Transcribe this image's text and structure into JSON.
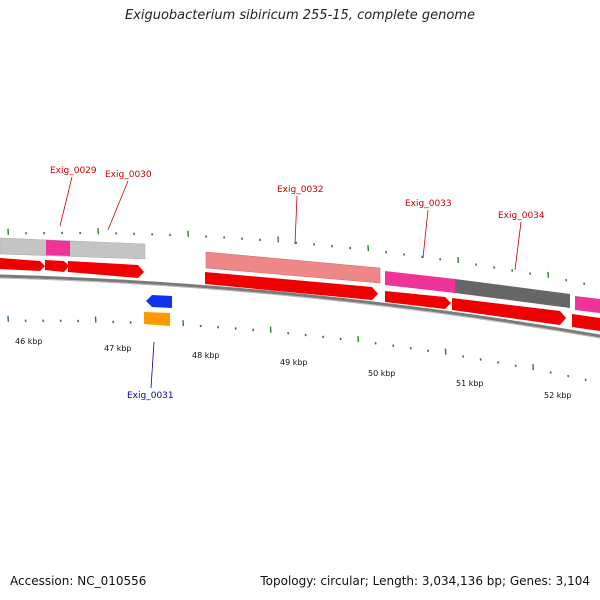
{
  "title": "Exiguobacterium sibiricum 255-15, complete genome",
  "accession": "Accession: NC_010556",
  "summary": "Topology: circular; Length: 3,034,136 bp; Genes: 3,104",
  "colors": {
    "gene_label_forward": "#cc0000",
    "gene_label_reverse": "#0000aa",
    "tick": "#2a7f2a",
    "backbone": "#888888",
    "cds_red": "#ee0000",
    "gray_feature": "#c4c4c4",
    "pink_feature": "#ee3399",
    "salmon_feature": "#ee8888",
    "dark_gray_feature": "#666666",
    "blue_feature": "#1133ee",
    "orange_feature": "#ff9900"
  },
  "gene_labels": [
    "Exig_0029",
    "Exig_0030",
    "Exig_0031",
    "Exig_0032",
    "Exig_0033",
    "Exig_0034"
  ],
  "kbp_labels": [
    "46 kbp",
    "47 kbp",
    "48 kbp",
    "49 kbp",
    "50 kbp",
    "51 kbp",
    "52 kbp"
  ]
}
